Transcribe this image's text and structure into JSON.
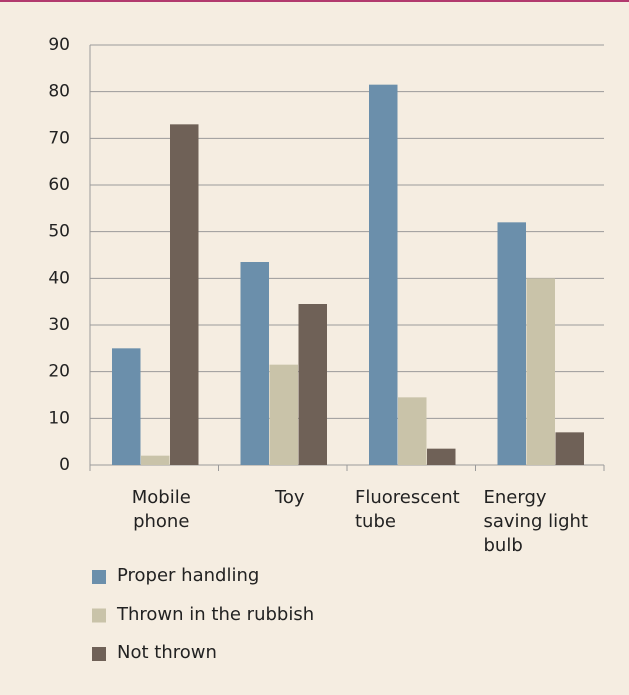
{
  "chart_data": {
    "type": "bar",
    "categories": [
      "Mobile phone",
      "Toy",
      "Fluorescent tube",
      "Energy saving light bulb"
    ],
    "series": [
      {
        "name": "Proper handling",
        "color": "#6b8fab",
        "values": [
          25,
          43.5,
          81.5,
          52
        ]
      },
      {
        "name": "Thrown in the rubbish",
        "color": "#c9c3a9",
        "values": [
          2,
          21.5,
          14.5,
          40
        ]
      },
      {
        "name": "Not thrown",
        "color": "#6f6157",
        "values": [
          73,
          34.5,
          3.5,
          7
        ]
      }
    ],
    "ylim": [
      0,
      90
    ],
    "yticks": [
      0,
      10,
      20,
      30,
      40,
      50,
      60,
      70,
      80,
      90
    ],
    "grid": true
  }
}
